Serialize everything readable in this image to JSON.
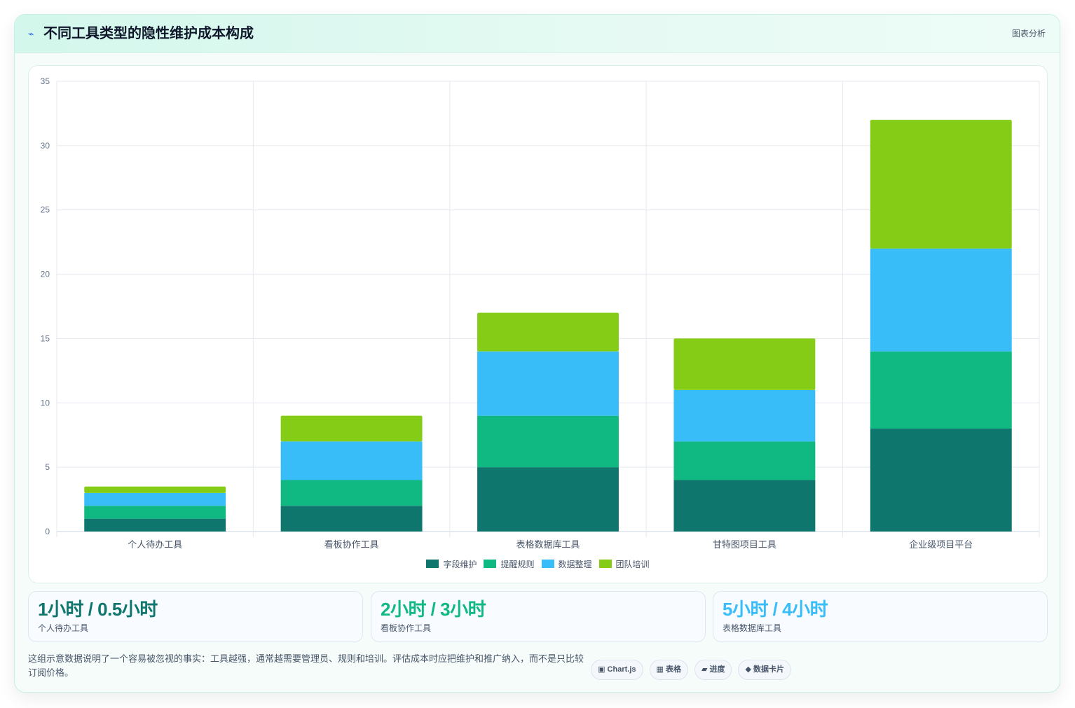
{
  "header": {
    "icon": "bolt-icon",
    "title": "不同工具类型的隐性维护成本构成",
    "tag": "图表分析"
  },
  "chart_data": {
    "type": "bar",
    "stacked": true,
    "categories": [
      "个人待办工具",
      "看板协作工具",
      "表格数据库工具",
      "甘特图项目工具",
      "企业级项目平台"
    ],
    "series": [
      {
        "name": "字段维护",
        "color": "#0f766e",
        "values": [
          1,
          2,
          5,
          4,
          8
        ]
      },
      {
        "name": "提醒规则",
        "color": "#10b981",
        "values": [
          1,
          2,
          4,
          3,
          6
        ]
      },
      {
        "name": "数据整理",
        "color": "#38bdf8",
        "values": [
          1,
          3,
          5,
          4,
          8
        ]
      },
      {
        "name": "团队培训",
        "color": "#84cc16",
        "values": [
          0.5,
          2,
          3,
          4,
          10
        ]
      }
    ],
    "ylim": [
      0,
      35
    ],
    "yticks": [
      0,
      5,
      10,
      15,
      20,
      25,
      30,
      35
    ],
    "grid": true,
    "legend": "bottom"
  },
  "stats": [
    {
      "value": "1小时 / 0.5小时",
      "label": "个人待办工具",
      "color": "#0f766e"
    },
    {
      "value": "2小时 / 3小时",
      "label": "看板协作工具",
      "color": "#10b981"
    },
    {
      "value": "5小时 / 4小时",
      "label": "表格数据库工具",
      "color": "#38bdf8"
    }
  ],
  "note": "这组示意数据说明了一个容易被忽视的事实：工具越强，通常越需要管理员、规则和培训。评估成本时应把维护和推广纳入，而不是只比较订阅价格。",
  "chips": [
    {
      "icon": "chart-icon",
      "label": "▣ Chart.js"
    },
    {
      "icon": "table-icon",
      "label": "▦ 表格"
    },
    {
      "icon": "progress-icon",
      "label": "▰ 进度"
    },
    {
      "icon": "card-icon",
      "label": "◆ 数据卡片"
    }
  ]
}
